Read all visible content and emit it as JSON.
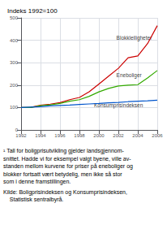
{
  "chart_data": {
    "type": "line",
    "title": "Indeks 1992=100",
    "x": [
      1992,
      1993,
      1994,
      1995,
      1996,
      1997,
      1998,
      1999,
      2000,
      2001,
      2002,
      2003,
      2004,
      2005,
      2006
    ],
    "series": [
      {
        "name": "Blokkleiligheter",
        "color": "#cc0000",
        "values": [
          100,
          101,
          110,
          115,
          122,
          135,
          145,
          170,
          205,
          240,
          275,
          322,
          330,
          385,
          465
        ]
      },
      {
        "name": "Eneboliger",
        "color": "#33aa00",
        "values": [
          100,
          100,
          108,
          112,
          118,
          128,
          135,
          150,
          170,
          185,
          196,
          200,
          202,
          232,
          265
        ]
      },
      {
        "name": "Konsumprisindeksen",
        "color": "#0055cc",
        "values": [
          100,
          102,
          104,
          107,
          109,
          111,
          114,
          116,
          118,
          121,
          123,
          126,
          128,
          130,
          133
        ]
      }
    ],
    "xlim": [
      1992,
      2006
    ],
    "xticks": [
      1992,
      1994,
      1996,
      1998,
      2000,
      2002,
      2004,
      2006
    ],
    "ylim": [
      0,
      500
    ],
    "yticks": [
      0,
      100,
      200,
      300,
      400,
      500
    ],
    "grid": true,
    "annotations": [
      {
        "text": "Blokkleiligheter",
        "x": 2001.8,
        "y": 410
      },
      {
        "text": "Eneboliger",
        "x": 2001.8,
        "y": 245
      },
      {
        "text": "Konsumprisindeksen",
        "x": 1999.5,
        "y": 112
      }
    ],
    "footnote": [
      "¹ Tall for boligprisutvikling gjelder landsgjennom-",
      "snittet. Hadde vi for eksempel valgt byene, ville av-",
      "standen mellom kurvene for priser på eneboliger og",
      "blokker fortsatt vært betydelig, men ikke så stor",
      "som i denne framstillingen."
    ],
    "source": [
      "Kilde: Boligprisindeksen og Konsumprisindeksen,",
      "    Statistisk sentralbyrå."
    ]
  }
}
